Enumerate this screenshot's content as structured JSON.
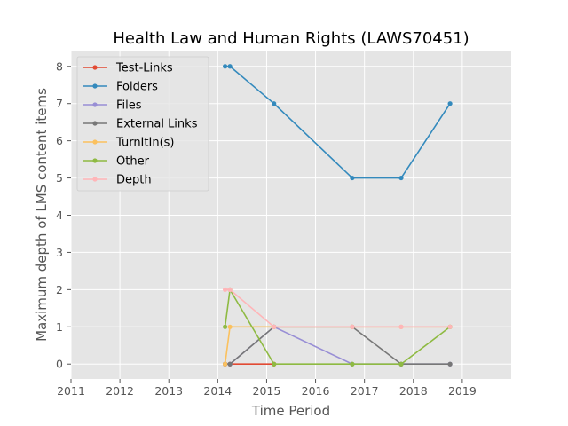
{
  "chart_data": {
    "type": "line",
    "title": "Health Law and Human Rights (LAWS70451)",
    "xlabel": "Time Period",
    "ylabel": "Maximum depth of LMS content items",
    "xlim": [
      2011,
      2020
    ],
    "ylim": [
      -0.4,
      8.4
    ],
    "xticks": [
      2011,
      2012,
      2013,
      2014,
      2015,
      2016,
      2017,
      2018,
      2019
    ],
    "yticks": [
      0,
      1,
      2,
      3,
      4,
      5,
      6,
      7,
      8
    ],
    "legend_position": "top-left",
    "series": [
      {
        "name": "Test-Links",
        "color": "#E24A33",
        "x": [
          2014.15,
          2014.25,
          2015.15
        ],
        "y": [
          0,
          0,
          0
        ]
      },
      {
        "name": "Folders",
        "color": "#348ABD",
        "x": [
          2014.15,
          2014.25,
          2015.15,
          2016.75,
          2017.75,
          2018.75
        ],
        "y": [
          8,
          8,
          7,
          5,
          5,
          7
        ]
      },
      {
        "name": "Files",
        "color": "#988ED5",
        "x": [
          2014.15,
          2014.25,
          2015.15,
          2016.75,
          2017.75,
          2018.75
        ],
        "y": [
          0,
          0,
          1,
          0,
          0,
          0
        ]
      },
      {
        "name": "External Links",
        "color": "#777777",
        "x": [
          2014.15,
          2014.25,
          2015.15,
          2016.75,
          2017.75,
          2018.75
        ],
        "y": [
          0,
          0,
          1,
          1,
          0,
          0
        ]
      },
      {
        "name": "TurnItIn(s)",
        "color": "#FBC15E",
        "x": [
          2014.15,
          2014.25,
          2015.15,
          2016.75,
          2017.75,
          2018.75
        ],
        "y": [
          0,
          1,
          1,
          1,
          1,
          1
        ]
      },
      {
        "name": "Other",
        "color": "#8EBA42",
        "x": [
          2014.15,
          2014.25,
          2015.15,
          2016.75,
          2017.75,
          2018.75
        ],
        "y": [
          1,
          2,
          0,
          0,
          0,
          1
        ]
      },
      {
        "name": "Depth",
        "color": "#FFB5B8",
        "x": [
          2014.15,
          2014.25,
          2015.15,
          2016.75,
          2017.75,
          2018.75
        ],
        "y": [
          2,
          2,
          1,
          1,
          1,
          1
        ]
      }
    ]
  }
}
